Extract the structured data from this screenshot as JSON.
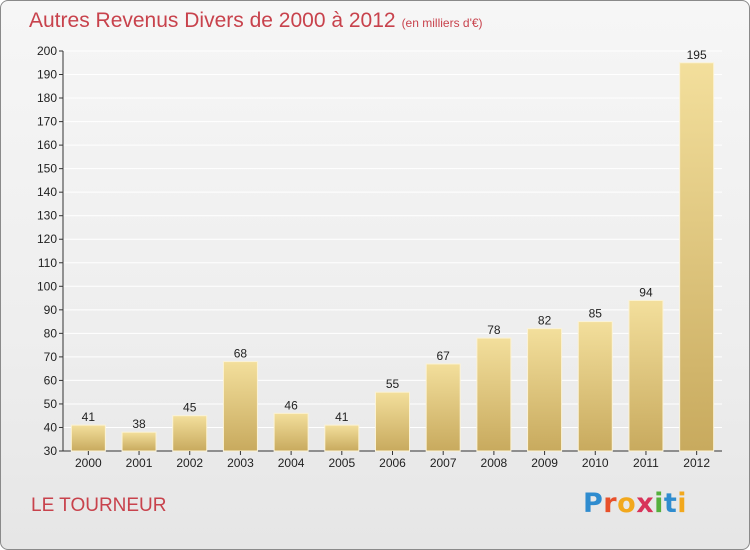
{
  "header": {
    "title": "Autres Revenus Divers de 2000 à 2012",
    "subtitle": "(en milliers d'€)"
  },
  "commune": "LE TOURNEUR",
  "logo": {
    "text": "Proxiti",
    "letter_colors": [
      "#2f8ccf",
      "#e8502a",
      "#f2a81d",
      "#d8335a",
      "#55b03d",
      "#2f8ccf",
      "#f2a81d"
    ]
  },
  "colors": {
    "title": "#c8424c",
    "bar_light": "#f3df9c",
    "bar_dark": "#c8aa5e",
    "grid": "#ffffff",
    "axis": "#333333"
  },
  "chart_data": {
    "type": "bar",
    "title": "Autres Revenus Divers de 2000 à 2012",
    "subtitle": "(en milliers d'€)",
    "categories": [
      "2000",
      "2001",
      "2002",
      "2003",
      "2004",
      "2005",
      "2006",
      "2007",
      "2008",
      "2009",
      "2010",
      "2011",
      "2012"
    ],
    "values": [
      41,
      38,
      45,
      68,
      46,
      41,
      55,
      67,
      78,
      82,
      85,
      94,
      195
    ],
    "ylim": [
      30,
      200
    ],
    "yticks": [
      30,
      40,
      50,
      60,
      70,
      80,
      90,
      100,
      110,
      120,
      130,
      140,
      150,
      160,
      170,
      180,
      190,
      200
    ],
    "grid": true
  }
}
